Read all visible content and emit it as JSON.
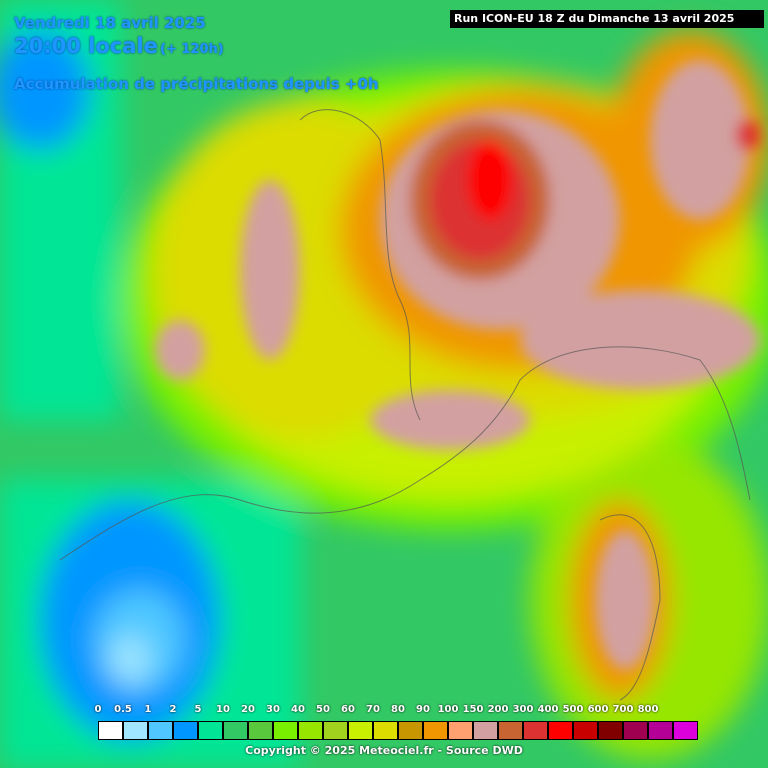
{
  "header": {
    "date": "Vendredi 18 avril 2025",
    "time": "20:00 locale",
    "lead": "(+ 120h)",
    "subtitle": "Accumulation de précipitations depuis +0h",
    "run": "Run ICON-EU 18 Z du Dimanche 13 avril 2025"
  },
  "legend": {
    "items": [
      {
        "label": "0",
        "color": "#ffffff"
      },
      {
        "label": "0.5",
        "color": "#a0e6ff"
      },
      {
        "label": "1",
        "color": "#50c8ff"
      },
      {
        "label": "2",
        "color": "#0096ff"
      },
      {
        "label": "5",
        "color": "#00e696"
      },
      {
        "label": "10",
        "color": "#32c864"
      },
      {
        "label": "20",
        "color": "#5ac83c"
      },
      {
        "label": "30",
        "color": "#78f000"
      },
      {
        "label": "40",
        "color": "#96e600"
      },
      {
        "label": "50",
        "color": "#a0d21e"
      },
      {
        "label": "60",
        "color": "#c8f000"
      },
      {
        "label": "70",
        "color": "#dcdc00"
      },
      {
        "label": "80",
        "color": "#c89600"
      },
      {
        "label": "90",
        "color": "#f09600"
      },
      {
        "label": "100",
        "color": "#ffa070"
      },
      {
        "label": "150",
        "color": "#d2a0a0"
      },
      {
        "label": "200",
        "color": "#c86432"
      },
      {
        "label": "300",
        "color": "#dc3232"
      },
      {
        "label": "400",
        "color": "#ff0000"
      },
      {
        "label": "500",
        "color": "#c80000"
      },
      {
        "label": "600",
        "color": "#800000"
      },
      {
        "label": "700",
        "color": "#a00050"
      },
      {
        "label": "800",
        "color": "#b40096"
      },
      {
        "label": "",
        "color": "#dc00dc"
      }
    ]
  },
  "footer": {
    "copyright": "Copyright © 2025 Meteociel.fr - Source DWD"
  }
}
